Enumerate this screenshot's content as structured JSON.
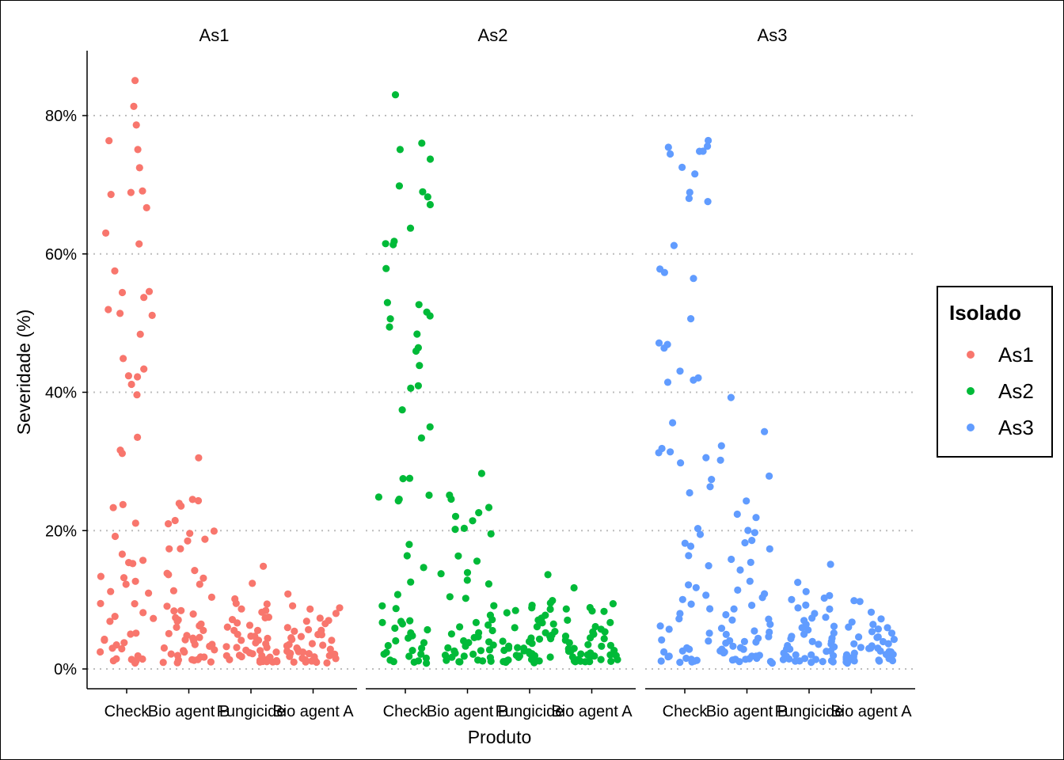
{
  "chart_data": {
    "type": "scatter",
    "subtype": "jitter",
    "facet_by": "Isolado",
    "facets": [
      "As1",
      "As2",
      "As3"
    ],
    "categories": [
      "Check",
      "Bio agent B",
      "Fungicide",
      "Bio agent A"
    ],
    "xlabel": "Produto",
    "ylabel": "Severidade (%)",
    "ylim": [
      0,
      88
    ],
    "yticks": [
      0,
      20,
      40,
      60,
      80
    ],
    "ytick_labels": [
      "0%",
      "20%",
      "40%",
      "60%",
      "80%"
    ],
    "grid": "horizontal dotted",
    "legend": {
      "title": "Isolado",
      "position": "right",
      "entries": [
        {
          "label": "As1",
          "color": "#F8766D"
        },
        {
          "label": "As2",
          "color": "#00BA38"
        },
        {
          "label": "As3",
          "color": "#619CFF"
        }
      ]
    },
    "series": [
      {
        "name": "As1",
        "color": "#F8766D",
        "points": {
          "Check": [
            85.0,
            81.5,
            78.7,
            76.5,
            75.2,
            72.4,
            69.0,
            68.8,
            68.7,
            66.8,
            63.0,
            61.4,
            57.5,
            54.7,
            54.4,
            53.6,
            51.9,
            51.4,
            51.1,
            48.3,
            45.0,
            43.3,
            42.5,
            42.1,
            41.0,
            39.6,
            33.4,
            31.6,
            31.3,
            23.6,
            23.2,
            20.9,
            19.1,
            16.5,
            15.7,
            15.5,
            15.3,
            13.4,
            13.2,
            12.6,
            12.4,
            11.2,
            11.0,
            9.5,
            9.4,
            8.2,
            7.7,
            7.3,
            6.9,
            5.3,
            5.1,
            4.3,
            4.2,
            3.9,
            3.6,
            3.1,
            2.9,
            2.4,
            2.0,
            1.6,
            1.5,
            1.3,
            1.2,
            1.1,
            1.1,
            1.0
          ],
          "Bio agent B": [
            30.4,
            24.4,
            24.3,
            24.0,
            23.5,
            21.4,
            21.0,
            20.0,
            19.7,
            18.7,
            18.5,
            17.5,
            17.2,
            14.2,
            13.7,
            13.5,
            13.2,
            12.2,
            11.3,
            10.3,
            9.2,
            8.6,
            8.3,
            8.1,
            7.5,
            7.2,
            6.9,
            6.5,
            6.3,
            5.9,
            5.4,
            5.1,
            4.8,
            4.6,
            4.4,
            4.2,
            4.0,
            3.7,
            3.5,
            3.2,
            3.0,
            2.8,
            2.6,
            2.4,
            2.3,
            2.1,
            1.9,
            1.7,
            1.5,
            1.4,
            1.3,
            1.2,
            1.1,
            1.0,
            1.0
          ],
          "Fungicide": [
            15.0,
            12.5,
            10.0,
            9.6,
            9.3,
            8.8,
            8.5,
            8.1,
            7.6,
            7.3,
            7.0,
            6.6,
            6.3,
            6.0,
            5.7,
            5.4,
            5.1,
            4.8,
            4.6,
            4.4,
            4.2,
            4.0,
            3.8,
            3.6,
            3.4,
            3.2,
            3.0,
            2.8,
            2.7,
            2.5,
            2.4,
            2.2,
            2.0,
            1.9,
            1.8,
            1.7,
            1.6,
            1.5,
            1.4,
            1.3,
            1.2,
            1.1,
            1.1,
            1.0,
            1.0,
            1.0
          ],
          "Bio agent A": [
            10.9,
            9.0,
            8.8,
            8.5,
            8.0,
            7.5,
            7.1,
            6.8,
            6.4,
            6.1,
            5.8,
            5.5,
            5.3,
            5.0,
            4.8,
            4.6,
            4.4,
            4.2,
            4.0,
            3.8,
            3.6,
            3.4,
            3.2,
            3.1,
            2.9,
            2.8,
            2.6,
            2.5,
            2.4,
            2.2,
            2.1,
            2.0,
            1.9,
            1.8,
            1.7,
            1.6,
            1.5,
            1.4,
            1.3,
            1.2,
            1.2,
            1.1,
            1.1,
            1.0,
            1.0,
            1.0
          ]
        }
      },
      {
        "name": "As2",
        "color": "#00BA38",
        "points": {
          "Check": [
            83.0,
            76.0,
            75.2,
            73.7,
            69.8,
            69.0,
            68.4,
            67.0,
            63.8,
            61.8,
            61.6,
            61.2,
            58.0,
            52.8,
            52.6,
            51.5,
            51.0,
            50.6,
            49.4,
            48.4,
            46.5,
            46.1,
            43.8,
            40.8,
            40.5,
            37.3,
            35.0,
            33.5,
            27.6,
            27.4,
            25.0,
            24.8,
            24.4,
            24.3,
            18.1,
            16.2,
            14.5,
            12.4,
            10.7,
            9.0,
            8.9,
            7.1,
            7.0,
            6.8,
            6.5,
            6.0,
            5.6,
            5.1,
            4.8,
            4.3,
            4.0,
            3.7,
            3.4,
            3.1,
            2.8,
            2.5,
            2.2,
            2.0,
            1.8,
            1.6,
            1.4,
            1.2,
            1.1,
            1.0,
            1.0
          ],
          "Bio agent B": [
            28.2,
            25.0,
            24.5,
            23.3,
            22.5,
            22.1,
            21.4,
            20.3,
            20.1,
            19.6,
            16.2,
            15.7,
            14.0,
            13.7,
            13.0,
            12.4,
            10.5,
            10.2,
            9.3,
            7.6,
            7.0,
            6.8,
            6.4,
            6.0,
            5.6,
            5.3,
            5.0,
            4.8,
            4.5,
            4.2,
            4.0,
            3.7,
            3.5,
            3.3,
            3.1,
            2.9,
            2.7,
            2.5,
            2.3,
            2.1,
            2.0,
            1.8,
            1.7,
            1.5,
            1.4,
            1.3,
            1.2,
            1.1,
            1.0,
            1.0
          ],
          "Fungicide": [
            13.5,
            9.8,
            9.6,
            9.3,
            9.0,
            8.6,
            8.3,
            8.0,
            7.7,
            7.3,
            7.0,
            6.7,
            6.4,
            6.1,
            5.8,
            5.5,
            5.2,
            5.0,
            4.8,
            4.6,
            4.4,
            4.2,
            4.0,
            3.8,
            3.6,
            3.4,
            3.2,
            3.0,
            2.9,
            2.7,
            2.6,
            2.4,
            2.3,
            2.1,
            2.0,
            1.9,
            1.8,
            1.7,
            1.6,
            1.5,
            1.4,
            1.3,
            1.2,
            1.1,
            1.1,
            1.0,
            1.0,
            1.0
          ],
          "Bio agent A": [
            11.8,
            9.3,
            8.9,
            8.7,
            8.5,
            8.2,
            7.0,
            6.6,
            6.2,
            5.8,
            5.5,
            5.2,
            4.9,
            4.6,
            4.4,
            4.2,
            4.0,
            3.8,
            3.6,
            3.4,
            3.2,
            3.0,
            2.9,
            2.7,
            2.6,
            2.4,
            2.3,
            2.2,
            2.1,
            2.0,
            1.9,
            1.8,
            1.7,
            1.6,
            1.5,
            1.4,
            1.3,
            1.2,
            1.2,
            1.1,
            1.1,
            1.0,
            1.0,
            1.0
          ]
        }
      },
      {
        "name": "As3",
        "color": "#619CFF",
        "points": {
          "Check": [
            76.5,
            75.5,
            75.3,
            75.0,
            74.9,
            74.5,
            72.6,
            71.4,
            69.0,
            68.0,
            67.5,
            61.1,
            57.9,
            57.4,
            56.6,
            50.6,
            47.0,
            46.8,
            46.4,
            43.0,
            42.0,
            41.8,
            41.3,
            35.6,
            32.0,
            31.5,
            31.1,
            30.6,
            29.7,
            27.5,
            26.5,
            25.6,
            20.4,
            19.3,
            18.1,
            17.6,
            16.3,
            14.8,
            12.2,
            11.9,
            10.6,
            10.0,
            9.4,
            8.8,
            7.9,
            7.3,
            6.3,
            5.9,
            5.2,
            4.3,
            3.9,
            3.1,
            2.8,
            2.6,
            2.3,
            2.0,
            1.8,
            1.6,
            1.4,
            1.3,
            1.2,
            1.1,
            1.1,
            1.0,
            1.0
          ],
          "Bio agent B": [
            39.2,
            34.3,
            32.3,
            30.2,
            28.0,
            24.2,
            22.5,
            21.9,
            20.0,
            19.8,
            18.6,
            18.1,
            17.3,
            16.0,
            15.3,
            14.4,
            12.7,
            11.4,
            10.9,
            10.3,
            9.3,
            8.6,
            7.8,
            7.2,
            6.9,
            6.4,
            6.0,
            5.6,
            5.3,
            5.0,
            4.7,
            4.4,
            4.2,
            4.0,
            3.8,
            3.6,
            3.4,
            3.2,
            3.0,
            2.8,
            2.6,
            2.4,
            2.2,
            2.0,
            1.9,
            1.7,
            1.6,
            1.5,
            1.4,
            1.3,
            1.2,
            1.1,
            1.0,
            1.0
          ],
          "Fungicide": [
            15.1,
            12.6,
            11.2,
            10.6,
            10.2,
            9.9,
            9.3,
            8.9,
            8.5,
            8.0,
            7.6,
            7.2,
            6.9,
            6.5,
            6.2,
            5.9,
            5.6,
            5.3,
            5.0,
            4.7,
            4.5,
            4.3,
            4.1,
            3.9,
            3.7,
            3.5,
            3.3,
            3.1,
            2.9,
            2.8,
            2.6,
            2.5,
            2.3,
            2.2,
            2.0,
            1.9,
            1.8,
            1.7,
            1.6,
            1.5,
            1.4,
            1.3,
            1.2,
            1.1,
            1.1,
            1.0,
            1.0,
            1.0
          ],
          "Bio agent A": [
            9.9,
            9.8,
            8.2,
            7.1,
            6.8,
            6.5,
            6.2,
            5.9,
            5.6,
            5.3,
            5.0,
            4.8,
            4.6,
            4.4,
            4.2,
            4.0,
            3.8,
            3.6,
            3.4,
            3.2,
            3.1,
            2.9,
            2.8,
            2.6,
            2.5,
            2.4,
            2.3,
            2.2,
            2.1,
            2.0,
            1.9,
            1.8,
            1.7,
            1.6,
            1.5,
            1.4,
            1.3,
            1.2,
            1.2,
            1.1,
            1.1,
            1.0,
            1.0,
            1.0
          ]
        }
      }
    ]
  }
}
